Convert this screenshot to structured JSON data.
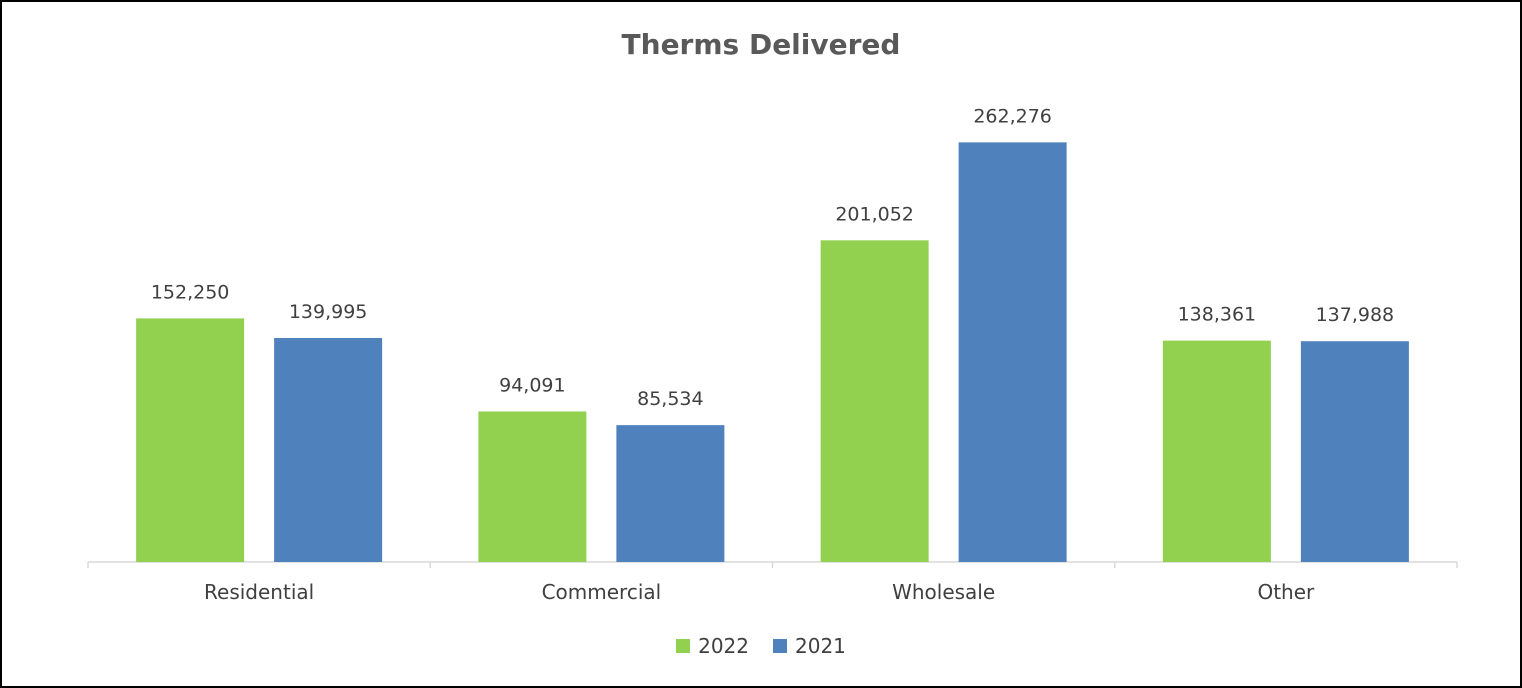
{
  "chart_data": {
    "type": "bar",
    "title": "Therms Delivered",
    "categories": [
      "Residential",
      "Commercial",
      "Wholesale",
      "Other"
    ],
    "series": [
      {
        "name": "2022",
        "color": "#92d050",
        "values": [
          152250,
          94091,
          201052,
          138361
        ],
        "labels": [
          "152,250",
          "94,091",
          "201,052",
          "138,361"
        ]
      },
      {
        "name": "2021",
        "color": "#4f81bd",
        "values": [
          139995,
          85534,
          262276,
          137988
        ],
        "labels": [
          "139,995",
          "85,534",
          "262,276",
          "137,988"
        ]
      }
    ],
    "ylim": [
      0,
      300000
    ],
    "grid": false,
    "legend_position": "bottom",
    "xlabel": "",
    "ylabel": ""
  }
}
